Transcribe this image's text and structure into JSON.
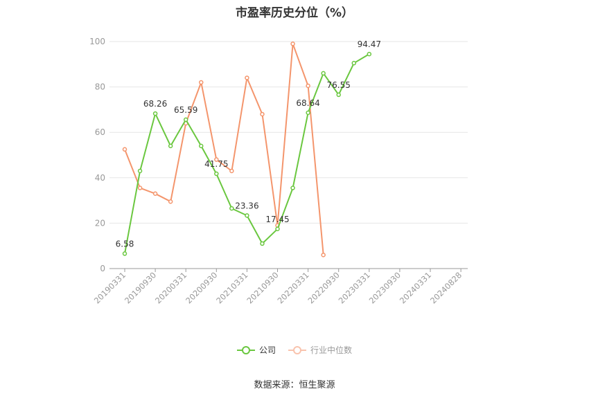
{
  "chart_data": {
    "type": "line",
    "title": "市盈率历史分位（%）",
    "xlabel": "",
    "ylabel": "",
    "ylim": [
      0,
      100
    ],
    "yticks": [
      0,
      20,
      40,
      60,
      80,
      100
    ],
    "xticks": [
      "20190331",
      "20190930",
      "20200331",
      "20200930",
      "20210331",
      "20210930",
      "20220331",
      "20220930",
      "20230331",
      "20230930",
      "20240331",
      "20240828"
    ],
    "grid": "horizontal",
    "legend_position": "bottom",
    "series": [
      {
        "name": "公司",
        "color": "#6ac73f",
        "x": [
          0,
          0.5,
          1,
          1.5,
          2,
          2.5,
          3,
          3.5,
          4,
          4.5,
          5,
          5.5,
          6,
          6.5,
          7,
          7.5,
          8
        ],
        "values": [
          6.58,
          43,
          68.26,
          54,
          65.59,
          54,
          41.75,
          26.5,
          23.36,
          11,
          17.45,
          35.5,
          68.64,
          86,
          76.55,
          90.5,
          94.47
        ],
        "labels": [
          "6.58",
          "",
          "68.26",
          "",
          "65.59",
          "",
          "41.75",
          "",
          "23.36",
          "",
          "17.45",
          "",
          "68.64",
          "",
          "76.55",
          "",
          "94.47"
        ]
      },
      {
        "name": "行业中位数",
        "color": "#f4956c",
        "x": [
          0,
          0.5,
          1,
          1.5,
          2,
          2.5,
          3,
          3.5,
          4,
          4.5,
          5,
          5.5,
          6,
          6.5
        ],
        "values": [
          52.5,
          35.5,
          33,
          29.5,
          64,
          82,
          48,
          43,
          84,
          68,
          19,
          99,
          80.5,
          6
        ]
      }
    ]
  },
  "source": "数据来源：恒生聚源"
}
